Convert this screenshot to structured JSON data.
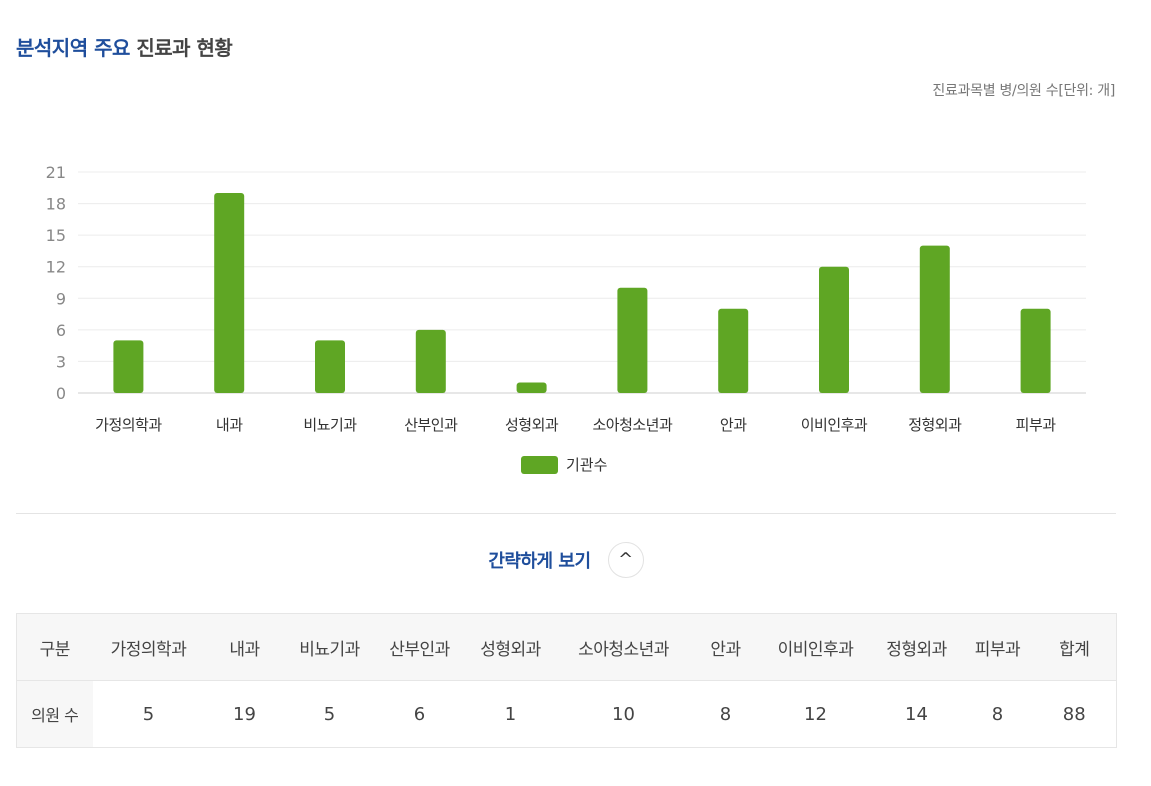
{
  "header": {
    "title_highlight": "분석지역 주요",
    "title_rest": "진료과 현황",
    "unit_note": "진료과목별 병/의원 수[단위: 개]"
  },
  "chart_data": {
    "type": "bar",
    "categories": [
      "가정의학과",
      "내과",
      "비뇨기과",
      "산부인과",
      "성형외과",
      "소아청소년과",
      "안과",
      "이비인후과",
      "정형외과",
      "피부과"
    ],
    "series": [
      {
        "name": "기관수",
        "values": [
          5,
          19,
          5,
          6,
          1,
          10,
          8,
          12,
          14,
          8
        ],
        "color": "#5fa624"
      }
    ],
    "yticks": [
      0,
      3,
      6,
      9,
      12,
      15,
      18,
      21
    ],
    "ylim": [
      0,
      21
    ],
    "grid": true,
    "legend_position": "bottom-center"
  },
  "toggle": {
    "label": "간략하게 보기",
    "icon": "chevron-up-icon",
    "glyph": "^"
  },
  "table": {
    "headers": [
      "구분",
      "가정의학과",
      "내과",
      "비뇨기과",
      "산부인과",
      "성형외과",
      "소아청소년과",
      "안과",
      "이비인후과",
      "정형외과",
      "피부과",
      "합계"
    ],
    "row_label": "의원 수",
    "values": [
      "5",
      "19",
      "5",
      "6",
      "1",
      "10",
      "8",
      "12",
      "14",
      "8",
      "88"
    ]
  }
}
